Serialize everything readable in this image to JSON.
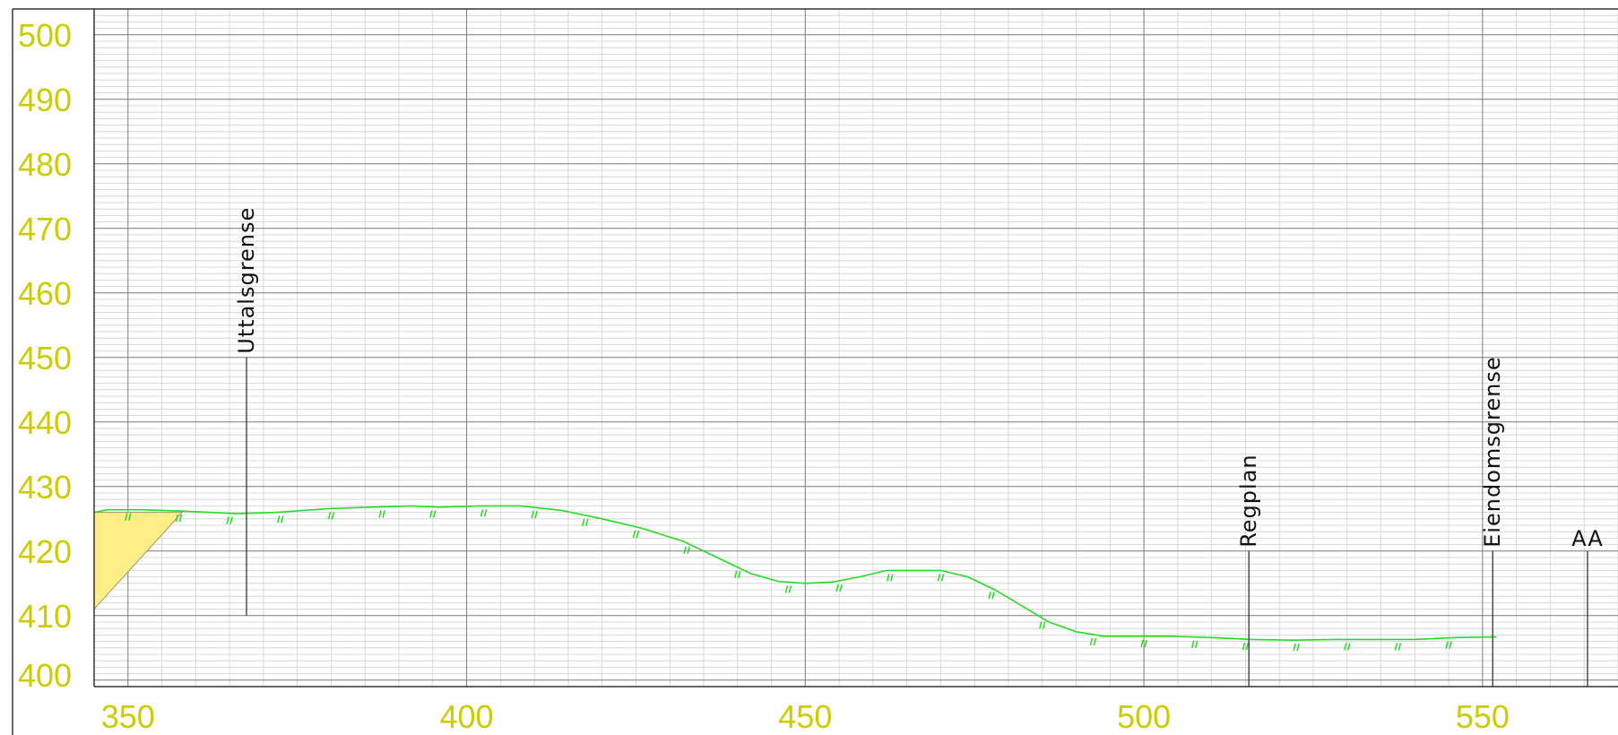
{
  "chart_data": {
    "type": "line",
    "title": "",
    "xlabel": "",
    "ylabel": "",
    "xlim": [
      345,
      570
    ],
    "ylim": [
      399,
      504
    ],
    "x_ticks": [
      "350",
      "400",
      "450",
      "500",
      "550"
    ],
    "x_tick_values": [
      350,
      400,
      450,
      500,
      550
    ],
    "y_ticks": [
      "400",
      "410",
      "420",
      "430",
      "440",
      "450",
      "460",
      "470",
      "480",
      "490",
      "500"
    ],
    "y_tick_values": [
      400,
      410,
      420,
      430,
      440,
      450,
      460,
      470,
      480,
      490,
      500
    ],
    "grid": true,
    "series": [
      {
        "color": "#22dd22",
        "x": [
          345,
          347,
          352,
          358,
          362,
          366,
          372,
          380,
          386,
          392,
          396,
          402,
          408,
          414,
          420,
          426,
          432,
          438,
          442,
          446,
          450,
          454,
          458,
          462,
          466,
          470,
          474,
          478,
          482,
          486,
          490,
          494,
          498,
          504,
          510,
          516,
          522,
          528,
          534,
          540,
          546,
          552
        ],
        "y": [
          426,
          426.4,
          426.4,
          426.2,
          426,
          425.8,
          426,
          426.6,
          426.8,
          427,
          426.8,
          427,
          427,
          426.3,
          425,
          423.5,
          421.5,
          418.5,
          416.5,
          415.3,
          415,
          415.2,
          416,
          417,
          417,
          417,
          416,
          414,
          411.5,
          409,
          407.5,
          406.8,
          406.8,
          406.8,
          406.6,
          406.3,
          406.2,
          406.3,
          406.3,
          406.3,
          406.6,
          406.7
        ]
      }
    ],
    "fill_region": {
      "color": "#ffee88",
      "x": [
        345,
        345,
        358
      ],
      "y": [
        411,
        426,
        426
      ]
    },
    "markers": [
      {
        "label": "Uttalsgrense",
        "x": 367.5,
        "y_top": 450,
        "y_bottom": 410
      },
      {
        "label": "Regplan",
        "x": 515.5,
        "y_top": 420,
        "y_bottom": 399
      },
      {
        "label": "Eiendomsgrense",
        "x": 551.5,
        "y_top": 420,
        "y_bottom": 399
      },
      {
        "label": "AA",
        "x": 565.5,
        "y_top": 420,
        "y_bottom": 399
      }
    ]
  }
}
